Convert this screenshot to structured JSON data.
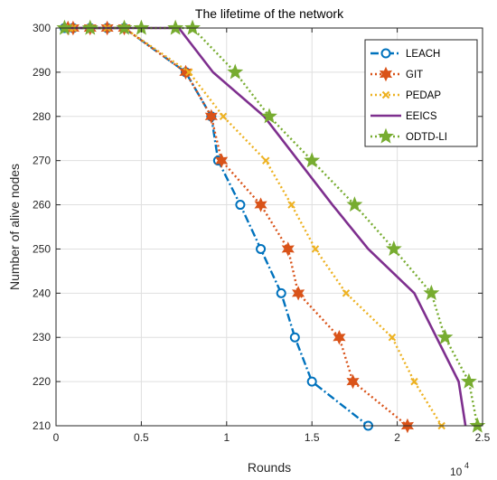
{
  "chart_data": {
    "type": "line",
    "title": "The lifetime of the network",
    "xlabel": "Rounds",
    "ylabel": "Number of alive nodes",
    "x_exponent_base": "10",
    "x_exponent_power": "4",
    "xlim": [
      0,
      25000
    ],
    "ylim": [
      210,
      300
    ],
    "xticks": [
      0,
      5000,
      10000,
      15000,
      20000,
      25000
    ],
    "xtick_labels": [
      "0",
      "0.5",
      "1",
      "1.5",
      "2",
      "2.5"
    ],
    "yticks": [
      210,
      220,
      230,
      240,
      250,
      260,
      270,
      280,
      290,
      300
    ],
    "ytick_labels": [
      "210",
      "220",
      "230",
      "240",
      "250",
      "260",
      "270",
      "280",
      "290",
      "300"
    ],
    "grid": true,
    "legend_position": "top-right",
    "series": [
      {
        "name": "LEACH",
        "color": "#0072BD",
        "line_style": "dashdot",
        "marker": "circle",
        "x": [
          500,
          1000,
          2000,
          3000,
          4000,
          7600,
          9100,
          9500,
          10800,
          12000,
          13200,
          14000,
          15000,
          18300
        ],
        "y": [
          300,
          300,
          300,
          300,
          300,
          290,
          280,
          270,
          260,
          250,
          240,
          230,
          220,
          210
        ]
      },
      {
        "name": "GIT",
        "color": "#D95319",
        "line_style": "dotted",
        "marker": "hexagram",
        "x": [
          700,
          1000,
          2000,
          3000,
          4000,
          7600,
          9100,
          9700,
          12000,
          13600,
          14200,
          16600,
          17400,
          20600
        ],
        "y": [
          300,
          300,
          300,
          300,
          300,
          290,
          280,
          270,
          260,
          250,
          240,
          230,
          220,
          210
        ]
      },
      {
        "name": "PEDAP",
        "color": "#EDB120",
        "line_style": "dotted",
        "marker": "x",
        "x": [
          800,
          1000,
          2000,
          3000,
          4000,
          7800,
          9800,
          12300,
          13800,
          15200,
          17000,
          19700,
          21000,
          22600
        ],
        "y": [
          300,
          300,
          300,
          300,
          300,
          290,
          280,
          270,
          260,
          250,
          240,
          230,
          220,
          210
        ]
      },
      {
        "name": "EEICS",
        "color": "#7E2F8E",
        "line_style": "solid",
        "marker": "none",
        "x": [
          700,
          7200,
          9200,
          12200,
          14200,
          16200,
          18300,
          21000,
          23600,
          24000
        ],
        "y": [
          300,
          300,
          290,
          280,
          270,
          260,
          250,
          240,
          220,
          210
        ]
      },
      {
        "name": "ODTD-LI",
        "color": "#77AC30",
        "line_style": "dotted",
        "marker": "pentagram",
        "x": [
          500,
          2000,
          4000,
          5000,
          7000,
          8000,
          10500,
          12500,
          15000,
          17500,
          19800,
          22000,
          22800,
          24200,
          24700
        ],
        "y": [
          300,
          300,
          300,
          300,
          300,
          300,
          290,
          280,
          270,
          260,
          250,
          240,
          230,
          220,
          210
        ]
      }
    ]
  }
}
